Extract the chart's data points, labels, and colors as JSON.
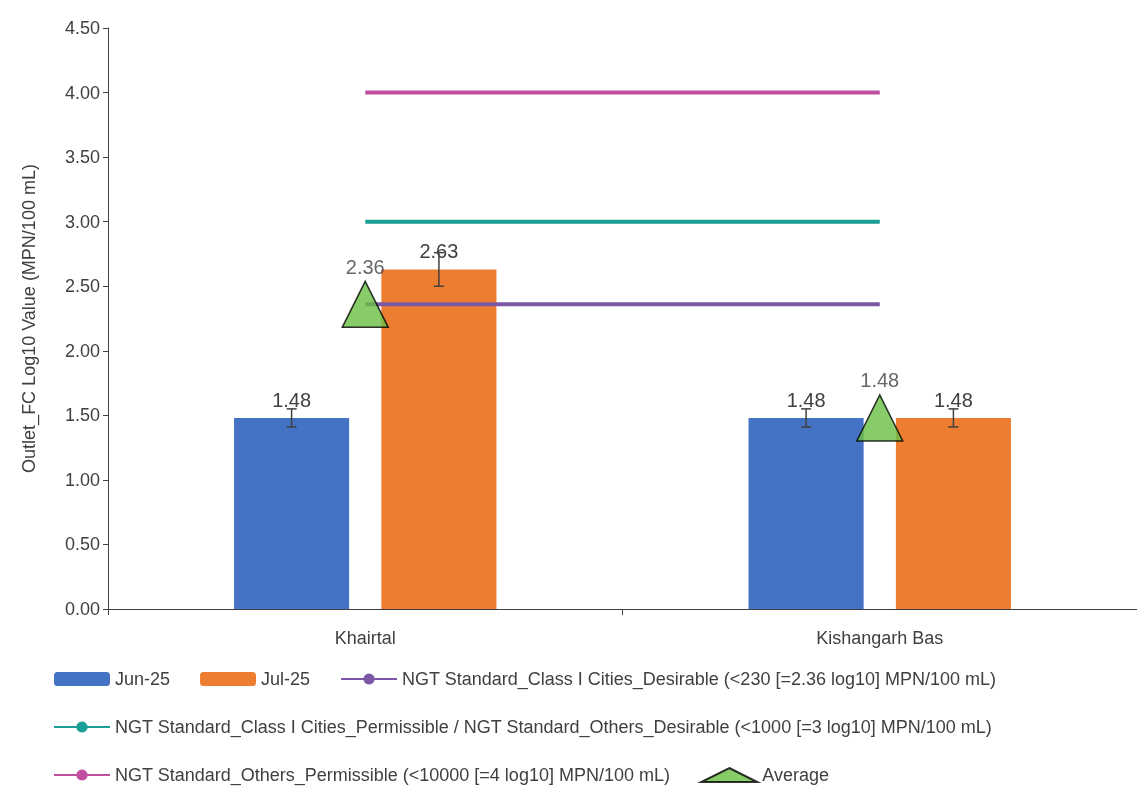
{
  "chart_data": {
    "type": "bar",
    "ylabel": "Outlet_FC Log10 Value (MPN/100 mL)",
    "categories": [
      "Khairtal",
      "Kishangarh Bas"
    ],
    "series": [
      {
        "name": "Jun-25",
        "color": "#4472c4",
        "values": [
          1.48,
          1.48
        ],
        "errors": [
          0.07,
          0.07
        ],
        "value_labels": [
          "1.48",
          "1.48"
        ]
      },
      {
        "name": "Jul-25",
        "color": "#ed7d31",
        "values": [
          2.63,
          1.48
        ],
        "errors": [
          0.13,
          0.07
        ],
        "value_labels": [
          "2.63",
          "1.48"
        ]
      },
      {
        "name": "NGT Standard_Class I Cities_Desirable (<230 [=2.36 log10] MPN/100 mL)",
        "type": "line",
        "color": "#7b58a6",
        "values": [
          2.36,
          2.36
        ]
      },
      {
        "name": "NGT Standard_Class I Cities_Permissible / NGT Standard_Others_Desirable (<1000 [=3 log10] MPN/100 mL)",
        "type": "line",
        "color": "#1a9e96",
        "values": [
          3,
          3
        ]
      },
      {
        "name": "NGT Standard_Others_Permissible (<10000 [=4 log10] MPN/100 mL)",
        "type": "line",
        "color": "#c0509f",
        "values": [
          4,
          4
        ]
      },
      {
        "name": "Average",
        "type": "scatter",
        "marker": "triangle",
        "color": "#6abf45",
        "values": [
          2.36,
          1.48
        ],
        "value_labels": [
          "2.36",
          "1.48"
        ]
      }
    ],
    "ylim": [
      0,
      4.5
    ],
    "yticks": [
      {
        "value": 0,
        "label": "0.00"
      },
      {
        "value": 0.5,
        "label": "0.50"
      },
      {
        "value": 1,
        "label": "1.00"
      },
      {
        "value": 1.5,
        "label": "1.50"
      },
      {
        "value": 2,
        "label": "2.00"
      },
      {
        "value": 2.5,
        "label": "2.50"
      },
      {
        "value": 3,
        "label": "3.00"
      },
      {
        "value": 3.5,
        "label": "3.50"
      },
      {
        "value": 4,
        "label": "4.00"
      },
      {
        "value": 4.5,
        "label": "4.50"
      }
    ],
    "grid": false,
    "legend": "bottom"
  }
}
